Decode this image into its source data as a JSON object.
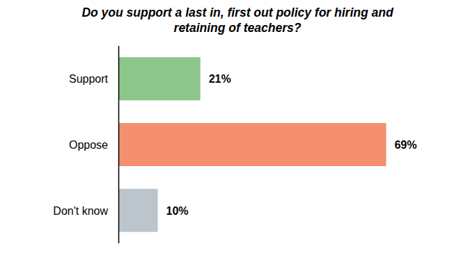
{
  "chart_data": {
    "type": "bar",
    "orientation": "horizontal",
    "title": "Do you support a last in, first out policy for hiring and retaining of teachers?",
    "categories": [
      "Support",
      "Oppose",
      "Don't know"
    ],
    "values": [
      21,
      69,
      10
    ],
    "value_labels": [
      "21%",
      "69%",
      "10%"
    ],
    "colors": [
      "#8dc68a",
      "#f4906f",
      "#bcc5cb"
    ],
    "xlim": [
      0,
      70
    ],
    "data_labels": true,
    "tick_labels": "y",
    "grid": false
  }
}
